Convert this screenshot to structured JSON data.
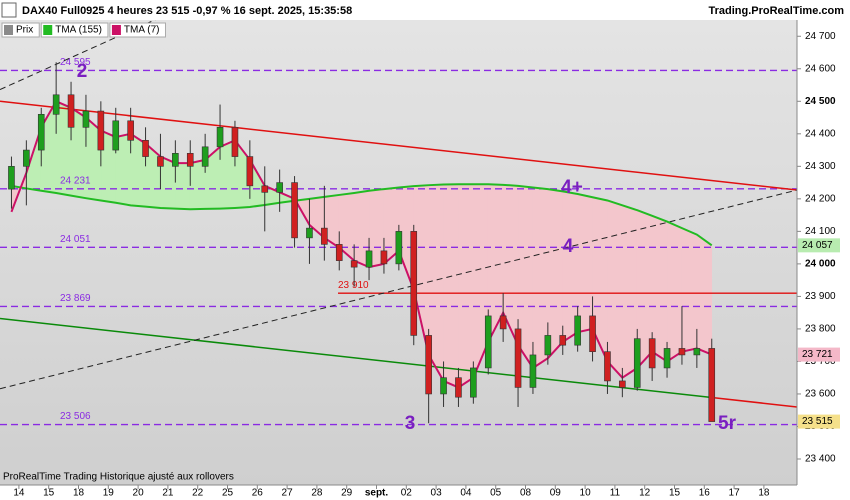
{
  "header": {
    "title": "DAX40 Full0925 4 heures 23 515 -0,97 % 16 sept. 2025, 15:35:58",
    "brand": "Trading.ProRealTime.com",
    "footer": "ProRealTime Trading  Historique ajusté aux rollovers"
  },
  "chart_data": {
    "type": "candlestick",
    "categories": [
      "14",
      null,
      "15",
      null,
      "18",
      null,
      "19",
      null,
      "20",
      null,
      "21",
      null,
      "22",
      null,
      "25",
      null,
      "26",
      null,
      "27",
      null,
      "28",
      null,
      "29",
      null,
      "sept.",
      null,
      "02",
      null,
      "03",
      null,
      "04",
      null,
      "05",
      null,
      "08",
      null,
      "09",
      null,
      "10",
      null,
      "11",
      null,
      "12",
      null,
      "15",
      null,
      "16",
      null,
      "17",
      null,
      "18",
      null
    ],
    "candles": {
      "name": "Prix",
      "color": "#8a8a8a",
      "up_color": "#1e9e1e",
      "down_color": "#d02020",
      "open": [
        24230,
        24300,
        24350,
        24460,
        24520,
        24420,
        24470,
        24350,
        24440,
        24380,
        24330,
        24300,
        24340,
        24300,
        24360,
        24420,
        24330,
        24240,
        24220,
        24250,
        24080,
        24110,
        24060,
        24010,
        23990,
        24040,
        24000,
        24100,
        23780,
        23600,
        23650,
        23590,
        23680,
        23840,
        23800,
        23620,
        23720,
        23780,
        23750,
        23840,
        23730,
        23640,
        23620,
        23770,
        23680,
        23740,
        23720,
        23740,
        null,
        null,
        null,
        null
      ],
      "high": [
        24330,
        24380,
        24480,
        24620,
        24560,
        24520,
        24500,
        24480,
        24480,
        24420,
        24400,
        24380,
        24380,
        24400,
        24490,
        24440,
        24380,
        24300,
        24290,
        24270,
        24200,
        24240,
        24100,
        24060,
        24080,
        24080,
        24120,
        24120,
        23800,
        23700,
        23680,
        23700,
        23860,
        23910,
        23830,
        23760,
        23820,
        23810,
        23870,
        23900,
        23760,
        23680,
        23800,
        23790,
        23760,
        23870,
        23800,
        23770,
        null,
        null,
        null,
        null
      ],
      "low": [
        24170,
        24180,
        24300,
        24400,
        24380,
        24360,
        24300,
        24340,
        24340,
        24300,
        24230,
        24250,
        24240,
        24280,
        24320,
        24300,
        24200,
        24100,
        24160,
        24050,
        24000,
        24010,
        23980,
        23930,
        23950,
        23970,
        23980,
        23750,
        23510,
        23560,
        23560,
        23570,
        23660,
        23760,
        23560,
        23600,
        23690,
        23720,
        23730,
        23700,
        23600,
        23590,
        23610,
        23640,
        23650,
        23690,
        23680,
        23520,
        null,
        null,
        null,
        null
      ],
      "close": [
        24300,
        24350,
        24460,
        24520,
        24420,
        24470,
        24350,
        24440,
        24380,
        24330,
        24300,
        24340,
        24300,
        24360,
        24420,
        24330,
        24240,
        24220,
        24250,
        24080,
        24110,
        24060,
        24010,
        23990,
        24040,
        24000,
        24100,
        23780,
        23600,
        23650,
        23590,
        23680,
        23840,
        23800,
        23620,
        23720,
        23780,
        23750,
        23840,
        23730,
        23640,
        23620,
        23770,
        23680,
        23740,
        23720,
        23740,
        23515,
        null,
        null,
        null,
        null
      ],
      "value_labels": [
        null,
        null,
        null,
        null,
        null,
        null,
        null,
        null,
        null,
        null,
        null,
        null,
        null,
        null,
        null,
        null,
        null,
        null,
        null,
        null,
        null,
        null,
        null,
        null,
        null,
        null,
        null,
        null,
        null,
        null,
        null,
        null,
        null,
        null,
        null,
        null,
        null,
        null,
        null,
        null,
        null,
        null,
        null,
        null,
        null,
        null,
        null,
        "23 515",
        null,
        null,
        null,
        null
      ],
      "label_color": "#f5e08a"
    },
    "series": [
      {
        "name": "TMA (155)",
        "color": "#22bb22",
        "label_color": "#b8ecb0",
        "values": [
          24240,
          24232,
          24225,
          24218,
          24210,
          24202,
          24195,
          24188,
          24180,
          24176,
          24172,
          24170,
          24168,
          24169,
          24170,
          24172,
          24175,
          24181,
          24188,
          24194,
          24200,
          24206,
          24212,
          24218,
          24225,
          24230,
          24235,
          24239,
          24242,
          24244,
          24245,
          24245,
          24245,
          24243,
          24240,
          24235,
          24230,
          24223,
          24215,
          24205,
          24195,
          24180,
          24165,
          24148,
          24130,
          24110,
          24090,
          24057,
          null,
          null,
          null,
          null
        ],
        "value_labels": [
          null,
          null,
          null,
          null,
          null,
          null,
          null,
          null,
          null,
          null,
          null,
          null,
          null,
          null,
          null,
          null,
          null,
          null,
          null,
          null,
          null,
          null,
          null,
          null,
          null,
          null,
          null,
          null,
          null,
          null,
          null,
          null,
          null,
          null,
          null,
          null,
          null,
          null,
          null,
          null,
          null,
          null,
          null,
          null,
          null,
          null,
          null,
          "24 057",
          null,
          null,
          null,
          null
        ]
      },
      {
        "name": "TMA (7)",
        "color": "#cc1166",
        "label_color": "#f4b8c8",
        "values": [
          24160,
          24280,
          24420,
          24500,
          24480,
          24450,
          24410,
          24390,
          24400,
          24370,
          24330,
          24310,
          24310,
          24320,
          24360,
          24380,
          24320,
          24240,
          24220,
          24200,
          24120,
          24080,
          24050,
          24010,
          23990,
          24000,
          24040,
          23920,
          23720,
          23640,
          23620,
          23650,
          23760,
          23850,
          23750,
          23680,
          23710,
          23760,
          23790,
          23800,
          23700,
          23650,
          23680,
          23730,
          23700,
          23730,
          23740,
          23721,
          null,
          null,
          null,
          null
        ],
        "value_labels": [
          null,
          null,
          null,
          null,
          null,
          null,
          null,
          null,
          null,
          null,
          null,
          null,
          null,
          null,
          null,
          null,
          null,
          null,
          null,
          null,
          null,
          null,
          null,
          null,
          null,
          null,
          null,
          null,
          null,
          null,
          null,
          null,
          null,
          null,
          null,
          null,
          null,
          null,
          null,
          null,
          null,
          null,
          null,
          null,
          null,
          null,
          null,
          "23 721",
          null,
          null,
          null,
          null
        ]
      }
    ],
    "fill_colors": [
      "#bdeeb4",
      "#f3c6cc"
    ],
    "levels": [
      {
        "value": 24595,
        "label": "24 595",
        "color": "#8a2be2",
        "dashed": true
      },
      {
        "value": 24231,
        "label": "24 231",
        "color": "#8a2be2",
        "dashed": true
      },
      {
        "value": 24051,
        "label": "24 051",
        "color": "#8a2be2",
        "dashed": true
      },
      {
        "value": 23869,
        "label": "23 869",
        "color": "#8a2be2",
        "dashed": true
      },
      {
        "value": 23506,
        "label": "23 506",
        "color": "#8a2be2",
        "dashed": true
      },
      {
        "value": 23910,
        "label": "23 910",
        "color": "#e01010",
        "dashed": false
      }
    ],
    "trendlines": [
      {
        "start": 24500,
        "end": 24227,
        "color": "#e01010",
        "dashed": false
      },
      {
        "start": 23832,
        "end": 23560,
        "color": "#0a8a0a",
        "after_color": "#e01010",
        "dashed": false
      },
      {
        "start": 23616,
        "end": 24227,
        "color": "#222222",
        "dashed": true
      },
      {
        "start": 24536,
        "end": 25640,
        "color": "#222222",
        "dashed": true
      }
    ],
    "annotations": [
      {
        "text": "2",
        "color": "#7a1fc0"
      },
      {
        "text": "4+",
        "color": "#7a1fc0"
      },
      {
        "text": "4",
        "color": "#7a1fc0"
      },
      {
        "text": "3",
        "color": "#7a1fc0"
      },
      {
        "text": "5r",
        "color": "#7a1fc0"
      }
    ],
    "ylim": [
      23320,
      24750
    ],
    "yticks": [
      {
        "value": 24700,
        "label": "24 700"
      },
      {
        "value": 24600,
        "label": "24 600"
      },
      {
        "value": 24500,
        "label": "24 500"
      },
      {
        "value": 24400,
        "label": "24 400"
      },
      {
        "value": 24300,
        "label": "24 300"
      },
      {
        "value": 24200,
        "label": "24 200"
      },
      {
        "value": 24100,
        "label": "24 100"
      },
      {
        "value": 24000,
        "label": "24 000"
      },
      {
        "value": 23900,
        "label": "23 900"
      },
      {
        "value": 23800,
        "label": "23 800"
      },
      {
        "value": 23700,
        "label": "23 700"
      },
      {
        "value": 23600,
        "label": "23 600"
      },
      {
        "value": 23500,
        "label": "23 500"
      },
      {
        "value": 23400,
        "label": "23 400"
      }
    ]
  }
}
